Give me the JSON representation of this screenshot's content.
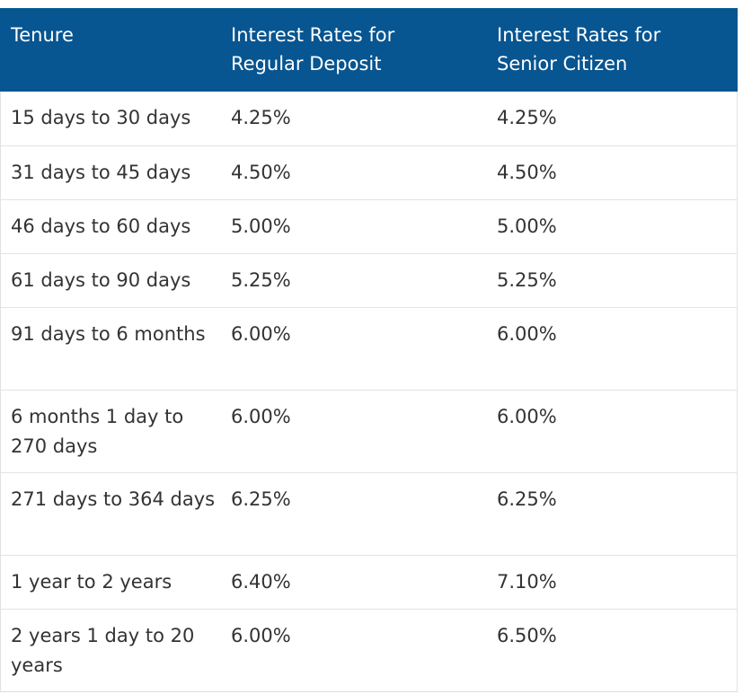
{
  "table": {
    "headers": [
      "Tenure",
      "Interest Rates for\nRegular Deposit",
      "Interest Rates for\nSenior Citizen"
    ],
    "rows": [
      [
        "15 days to 30 days",
        "4.25%",
        "4.25%"
      ],
      [
        "31 days to 45 days",
        "4.50%",
        "4.50%"
      ],
      [
        "46 days to 60 days",
        "5.00%",
        "5.00%"
      ],
      [
        "61 days to 90 days",
        "5.25%",
        "5.25%"
      ],
      [
        "91 days to 6 months",
        "6.00%",
        "6.00%"
      ],
      [
        "6 months 1 day to 270 days",
        "6.00%",
        "6.00%"
      ],
      [
        "271 days to 364 days",
        "6.25%",
        "6.25%"
      ],
      [
        "1 year to 2 years",
        "6.40%",
        "7.10%"
      ],
      [
        "2 years 1 day to 20 years",
        "6.00%",
        "6.50%"
      ]
    ]
  },
  "colors": {
    "header_background": "#075591",
    "header_text": "#ffffff",
    "body_text": "#333333",
    "row_divider": "#e3e3e3"
  }
}
